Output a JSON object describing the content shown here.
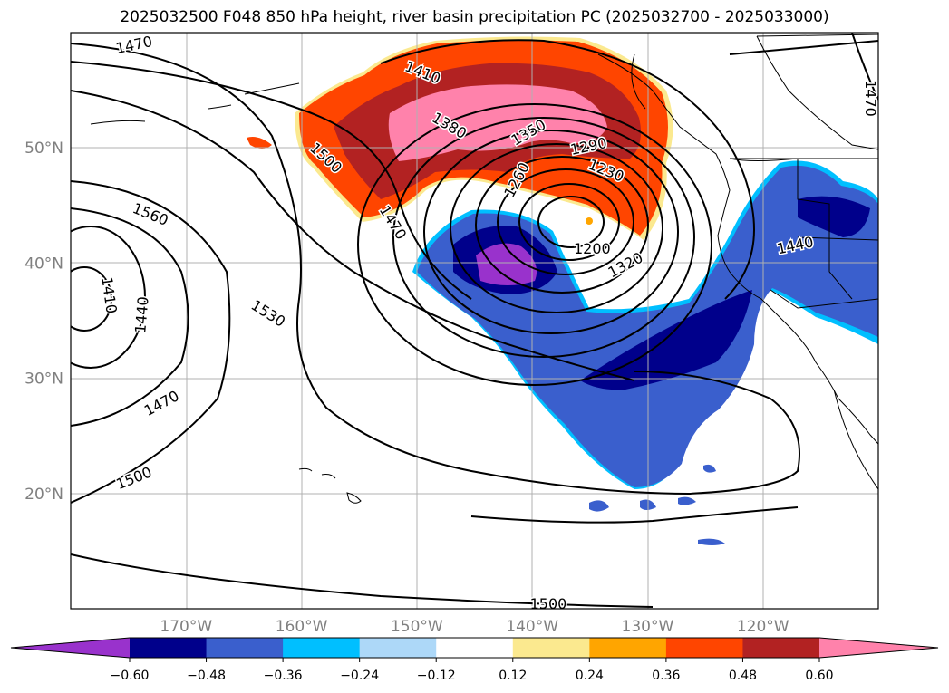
{
  "title": "2025032500 F048 850 hPa height, river basin precipitation PC (2025032700 - 2025033000)",
  "map": {
    "projection": "plate-carree",
    "lon_range": [
      -180,
      -110
    ],
    "lat_range": [
      10,
      60
    ],
    "gridlines": true,
    "lon_ticks": [
      {
        "value": -170,
        "label": "170°W"
      },
      {
        "value": -160,
        "label": "160°W"
      },
      {
        "value": -150,
        "label": "150°W"
      },
      {
        "value": -140,
        "label": "140°W"
      },
      {
        "value": -130,
        "label": "130°W"
      },
      {
        "value": -120,
        "label": "120°W"
      }
    ],
    "lat_ticks": [
      {
        "value": 50,
        "label": "50°N"
      },
      {
        "value": 40,
        "label": "40°N"
      },
      {
        "value": 30,
        "label": "30°N"
      },
      {
        "value": 20,
        "label": "20°N"
      }
    ],
    "contour_labels": [
      {
        "text": "1470",
        "lon": -174.5,
        "lat": 58.9,
        "rot": -12
      },
      {
        "text": "1410",
        "lon": -149.5,
        "lat": 56.5,
        "rot": 22
      },
      {
        "text": "1470",
        "lon": -110.7,
        "lat": 54.3,
        "rot": 90
      },
      {
        "text": "1380",
        "lon": -147.2,
        "lat": 51.9,
        "rot": 30
      },
      {
        "text": "1350",
        "lon": -140.3,
        "lat": 51.3,
        "rot": -30
      },
      {
        "text": "1290",
        "lon": -135.1,
        "lat": 50.1,
        "rot": -12
      },
      {
        "text": "1230",
        "lon": -133.6,
        "lat": 48.0,
        "rot": 22
      },
      {
        "text": "1500",
        "lon": -157.9,
        "lat": 49.1,
        "rot": 42
      },
      {
        "text": "1260",
        "lon": -141.3,
        "lat": 47.2,
        "rot": -62
      },
      {
        "text": "1560",
        "lon": -173.1,
        "lat": 44.2,
        "rot": 22
      },
      {
        "text": "1470",
        "lon": -152.1,
        "lat": 43.5,
        "rot": 58
      },
      {
        "text": "1440",
        "lon": -117.2,
        "lat": 41.5,
        "rot": -12
      },
      {
        "text": "1200",
        "lon": -134.8,
        "lat": 41.2,
        "rot": 0
      },
      {
        "text": "1320",
        "lon": -131.9,
        "lat": 39.8,
        "rot": -28
      },
      {
        "text": "1410",
        "lon": -176.7,
        "lat": 37.2,
        "rot": 82
      },
      {
        "text": "1440",
        "lon": -173.8,
        "lat": 35.5,
        "rot": -85
      },
      {
        "text": "1530",
        "lon": -162.9,
        "lat": 35.6,
        "rot": 32
      },
      {
        "text": "1470",
        "lon": -172.1,
        "lat": 27.8,
        "rot": -28
      },
      {
        "text": "1500",
        "lon": -174.5,
        "lat": 21.3,
        "rot": -22
      },
      {
        "text": "1500",
        "lon": -138.6,
        "lat": 10.4,
        "rot": 0
      }
    ]
  },
  "colorbar": {
    "extend": "both",
    "levels": [
      "-0.60",
      "-0.48",
      "-0.36",
      "-0.24",
      "-0.12",
      "0.12",
      "0.24",
      "0.36",
      "0.48",
      "0.60"
    ],
    "colors": [
      "#9932cc",
      "#00008b",
      "#3a5fcd",
      "#00bfff",
      "#add8f8",
      "#ffffff",
      "#fbe98f",
      "#ffa500",
      "#ff4500",
      "#b22222",
      "#ff82ab"
    ]
  }
}
